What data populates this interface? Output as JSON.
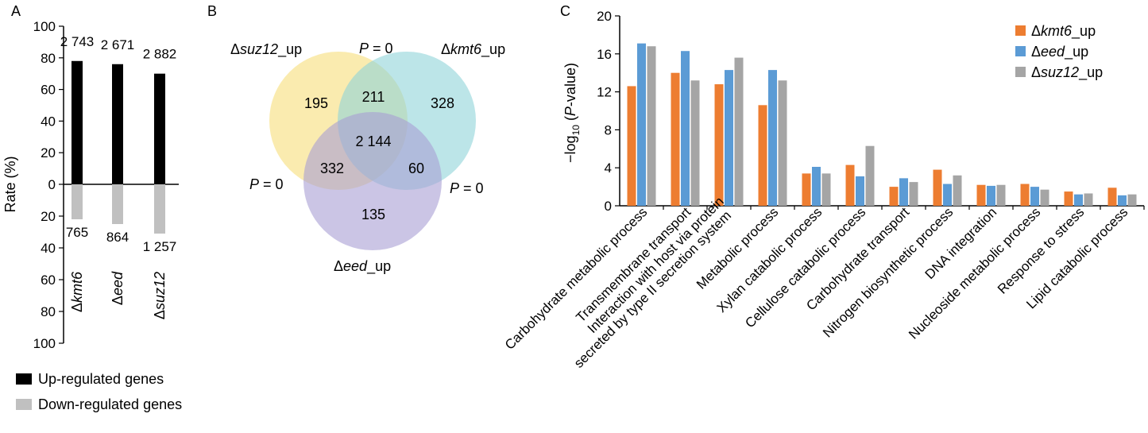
{
  "panels": {
    "a": "A",
    "b": "B",
    "c": "C"
  },
  "panel_a": {
    "chart_data": {
      "type": "bar",
      "ylabel": "Rate (%)",
      "y_ticks_up": [
        "100",
        "80",
        "60",
        "40",
        "20",
        "0"
      ],
      "y_ticks_down": [
        "20",
        "40",
        "60",
        "80",
        "100"
      ],
      "categories": [
        {
          "prefix": "Δ",
          "name": "kmt6"
        },
        {
          "prefix": "Δ",
          "name": "eed"
        },
        {
          "prefix": "Δ",
          "name": "suz12"
        }
      ],
      "up_values": [
        78,
        76,
        70
      ],
      "down_values": [
        22,
        25,
        31
      ],
      "up_labels": [
        "2 743",
        "2 671",
        "2 882"
      ],
      "down_labels": [
        "765",
        "864",
        "1 257"
      ],
      "ylim_up": [
        0,
        100
      ],
      "ylim_down": [
        0,
        100
      ],
      "colors": {
        "up": "#000000",
        "down": "#c0c0c0"
      }
    },
    "legend": [
      {
        "label": "Up-regulated genes",
        "color": "#000000"
      },
      {
        "label": "Down-regulated genes",
        "color": "#c0c0c0"
      }
    ]
  },
  "panel_b": {
    "sets": [
      {
        "prefix": "Δ",
        "name": "suz12",
        "suffix": "_up",
        "color": "#f6dd7a"
      },
      {
        "prefix": "Δ",
        "name": "kmt6",
        "suffix": "_up",
        "color": "#8fd3d8"
      },
      {
        "prefix": "Δ",
        "name": "eed",
        "suffix": "_up",
        "color": "#a99ed4"
      }
    ],
    "regions": {
      "suz12_only": "195",
      "suz12_kmt6": "211",
      "kmt6_only": "328",
      "all_three": "2 144",
      "suz12_eed": "332",
      "kmt6_eed": "60",
      "eed_only": "135"
    },
    "pvalues": {
      "p_letter": "P",
      "eq": " = 0"
    }
  },
  "panel_c": {
    "chart_data": {
      "type": "bar",
      "ylabel_prefix": "−log",
      "ylabel_sub": "10",
      "ylabel_paren_open": " (",
      "ylabel_p": "P",
      "ylabel_rest": "-value)",
      "y_ticks": [
        "0",
        "4",
        "8",
        "12",
        "16",
        "20"
      ],
      "ylim": [
        0,
        20
      ],
      "categories": [
        [
          "Carbohydrate metabolic process"
        ],
        [
          "Transmembrane transport"
        ],
        [
          "Interaction with host via protein",
          "secreted by type II secretion system"
        ],
        [
          "Metabolic process"
        ],
        [
          "Xylan catabolic process"
        ],
        [
          "Cellulose catabolic process"
        ],
        [
          "Carbohydrate transport"
        ],
        [
          "Nitrogen biosynthetic process"
        ],
        [
          "DNA integration"
        ],
        [
          "Nucleoside metabolic process"
        ],
        [
          "Response to stress"
        ],
        [
          "Lipid catabolic process"
        ]
      ],
      "series": [
        {
          "prefix": "Δ",
          "name": "kmt6",
          "suffix": "_up",
          "color": "#ed7d31",
          "values": [
            12.6,
            14.0,
            12.8,
            10.6,
            3.4,
            4.3,
            2.0,
            3.8,
            2.2,
            2.3,
            1.5,
            1.9
          ]
        },
        {
          "prefix": "Δ",
          "name": "eed",
          "suffix": "_up",
          "color": "#5b9bd5",
          "values": [
            17.1,
            16.3,
            14.3,
            14.3,
            4.1,
            3.1,
            2.9,
            2.3,
            2.1,
            2.0,
            1.2,
            1.1
          ]
        },
        {
          "prefix": "Δ",
          "name": "suz12",
          "suffix": "_up",
          "color": "#a5a5a5",
          "values": [
            16.8,
            13.2,
            15.6,
            13.2,
            3.4,
            6.3,
            2.5,
            3.2,
            2.2,
            1.7,
            1.3,
            1.2
          ]
        }
      ]
    }
  }
}
